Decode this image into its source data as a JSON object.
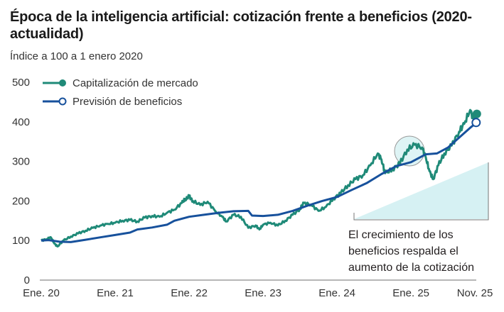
{
  "title": "Época de la inteligencia artificial: cotización frente a beneficios (2020-actualidad)",
  "subtitle": "Índice a 100 a 1 enero 2020",
  "colors": {
    "market": "#1f8a78",
    "earnings": "#17519c",
    "highlight_fill": "#d6f1f3",
    "axis": "#8a8a8a"
  },
  "chart_data": {
    "type": "line",
    "title": "Época de la inteligencia artificial: cotización frente a beneficios (2020-actualidad)",
    "subtitle": "Índice a 100 a 1 enero 2020",
    "xlabel": "",
    "ylabel": "",
    "ylim": [
      0,
      500
    ],
    "yticks": [
      0,
      100,
      200,
      300,
      400,
      500
    ],
    "x_unit": "years since Jan 2020",
    "xlim": [
      0,
      5.95
    ],
    "xticks": [
      {
        "x": 0,
        "label": "Ene. 20"
      },
      {
        "x": 1,
        "label": "Ene. 21"
      },
      {
        "x": 2,
        "label": "Ene. 22"
      },
      {
        "x": 3,
        "label": "Ene. 23"
      },
      {
        "x": 4,
        "label": "Ene. 24"
      },
      {
        "x": 5,
        "label": "Ene. 25"
      },
      {
        "x": 5.88,
        "label": "Nov. 25"
      }
    ],
    "grid": false,
    "legend_position": "top-left",
    "series": [
      {
        "name": "Capitalización de mercado",
        "marker": "filled-circle",
        "points": [
          [
            0.0,
            100
          ],
          [
            0.08,
            104
          ],
          [
            0.13,
            108
          ],
          [
            0.18,
            92
          ],
          [
            0.22,
            85
          ],
          [
            0.3,
            100
          ],
          [
            0.4,
            110
          ],
          [
            0.5,
            118
          ],
          [
            0.6,
            125
          ],
          [
            0.7,
            132
          ],
          [
            0.8,
            138
          ],
          [
            0.9,
            142
          ],
          [
            1.0,
            145
          ],
          [
            1.1,
            150
          ],
          [
            1.2,
            152
          ],
          [
            1.3,
            148
          ],
          [
            1.4,
            158
          ],
          [
            1.5,
            162
          ],
          [
            1.6,
            160
          ],
          [
            1.7,
            170
          ],
          [
            1.8,
            178
          ],
          [
            1.9,
            195
          ],
          [
            1.95,
            205
          ],
          [
            2.0,
            212
          ],
          [
            2.05,
            200
          ],
          [
            2.15,
            190
          ],
          [
            2.25,
            198
          ],
          [
            2.35,
            175
          ],
          [
            2.45,
            160
          ],
          [
            2.5,
            148
          ],
          [
            2.6,
            165
          ],
          [
            2.7,
            160
          ],
          [
            2.8,
            132
          ],
          [
            2.9,
            138
          ],
          [
            2.95,
            128
          ],
          [
            3.0,
            140
          ],
          [
            3.1,
            145
          ],
          [
            3.2,
            138
          ],
          [
            3.3,
            150
          ],
          [
            3.4,
            165
          ],
          [
            3.5,
            180
          ],
          [
            3.55,
            195
          ],
          [
            3.65,
            190
          ],
          [
            3.75,
            175
          ],
          [
            3.85,
            185
          ],
          [
            3.95,
            205
          ],
          [
            4.05,
            220
          ],
          [
            4.15,
            240
          ],
          [
            4.25,
            255
          ],
          [
            4.35,
            265
          ],
          [
            4.45,
            290
          ],
          [
            4.55,
            320
          ],
          [
            4.6,
            305
          ],
          [
            4.65,
            270
          ],
          [
            4.75,
            280
          ],
          [
            4.85,
            295
          ],
          [
            4.95,
            330
          ],
          [
            5.05,
            342
          ],
          [
            5.15,
            335
          ],
          [
            5.2,
            310
          ],
          [
            5.25,
            275
          ],
          [
            5.3,
            255
          ],
          [
            5.37,
            290
          ],
          [
            5.45,
            320
          ],
          [
            5.55,
            340
          ],
          [
            5.65,
            375
          ],
          [
            5.72,
            395
          ],
          [
            5.8,
            430
          ],
          [
            5.85,
            405
          ],
          [
            5.9,
            420
          ]
        ]
      },
      {
        "name": "Previsión de beneficios",
        "marker": "open-circle",
        "points": [
          [
            0.0,
            100
          ],
          [
            0.1,
            101
          ],
          [
            0.25,
            97
          ],
          [
            0.4,
            96
          ],
          [
            0.6,
            102
          ],
          [
            0.8,
            108
          ],
          [
            1.0,
            114
          ],
          [
            1.2,
            120
          ],
          [
            1.3,
            128
          ],
          [
            1.5,
            133
          ],
          [
            1.7,
            140
          ],
          [
            1.8,
            150
          ],
          [
            2.0,
            160
          ],
          [
            2.2,
            165
          ],
          [
            2.4,
            170
          ],
          [
            2.6,
            174
          ],
          [
            2.8,
            175
          ],
          [
            2.85,
            163
          ],
          [
            3.0,
            162
          ],
          [
            3.2,
            165
          ],
          [
            3.4,
            175
          ],
          [
            3.6,
            188
          ],
          [
            3.8,
            200
          ],
          [
            4.0,
            210
          ],
          [
            4.2,
            228
          ],
          [
            4.4,
            245
          ],
          [
            4.6,
            268
          ],
          [
            4.8,
            288
          ],
          [
            5.0,
            298
          ],
          [
            5.2,
            318
          ],
          [
            5.35,
            320
          ],
          [
            5.5,
            335
          ],
          [
            5.65,
            360
          ],
          [
            5.8,
            385
          ],
          [
            5.9,
            400
          ]
        ]
      }
    ],
    "annotations": [
      {
        "type": "circle-highlight",
        "x": 5.05,
        "y": 330
      },
      {
        "type": "rising-wedge",
        "text": "El crecimiento de los beneficios respalda el aumento de la cotización"
      }
    ]
  },
  "legend": [
    {
      "label": "Capitalización de mercado"
    },
    {
      "label": "Previsión de beneficios"
    }
  ],
  "annotation": {
    "lines": [
      "El crecimiento de los",
      "beneficios respalda el",
      "aumento de la cotización"
    ]
  }
}
